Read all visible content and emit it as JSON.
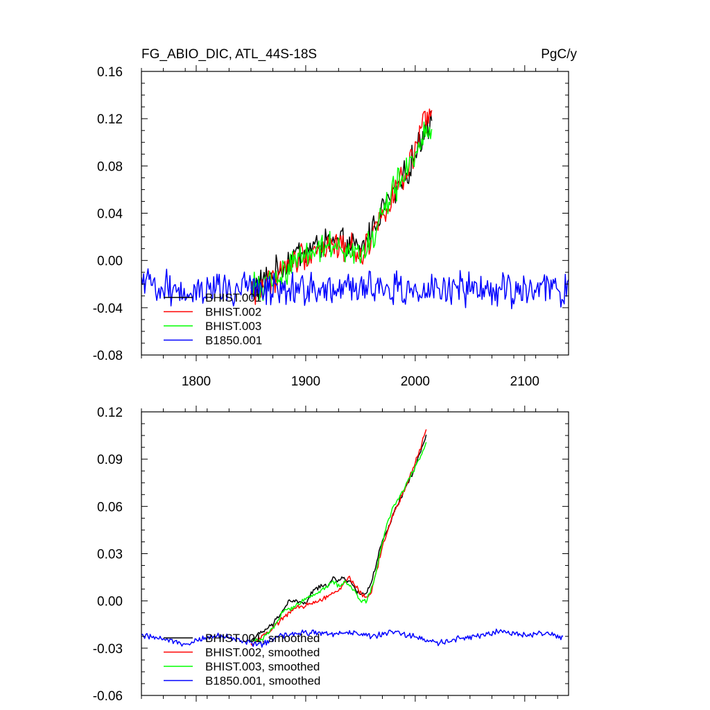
{
  "colors": {
    "BHIST.001": "#000000",
    "BHIST.002": "#ff0000",
    "BHIST.003": "#00ff00",
    "B1850.001": "#0000ff"
  },
  "chart_data": [
    {
      "type": "line",
      "title": "FG_ABIO_DIC, ATL_44S-18S",
      "units": "PgC/y",
      "xlim": [
        1750,
        2140
      ],
      "ylim": [
        -0.08,
        0.16
      ],
      "x_ticks": [
        1800,
        1900,
        2000,
        2100
      ],
      "x_tick_labels": [
        "1800",
        "1900",
        "2000",
        "2100"
      ],
      "y_ticks": [
        -0.08,
        -0.04,
        0.0,
        0.04,
        0.08,
        0.12,
        0.16
      ],
      "y_tick_labels": [
        "-0.08",
        "-0.04",
        "0.00",
        "0.04",
        "0.08",
        "0.12",
        "0.16"
      ],
      "legend": [
        "BHIST.001",
        "BHIST.002",
        "BHIST.003",
        "B1850.001"
      ],
      "legend_position": "bottom-left",
      "series": [
        {
          "name": "BHIST.001",
          "color": "#000000",
          "x_range": [
            1850,
            2015
          ],
          "noise": 0.01,
          "x": [
            1850,
            1870,
            1880,
            1890,
            1900,
            1910,
            1920,
            1930,
            1940,
            1950,
            1960,
            1970,
            1980,
            1990,
            2000,
            2010,
            2015
          ],
          "y": [
            -0.025,
            -0.012,
            -0.005,
            0.005,
            0.008,
            0.012,
            0.015,
            0.014,
            0.012,
            0.008,
            0.025,
            0.045,
            0.055,
            0.07,
            0.09,
            0.115,
            0.12
          ]
        },
        {
          "name": "BHIST.002",
          "color": "#ff0000",
          "x_range": [
            1850,
            2015
          ],
          "noise": 0.01,
          "x": [
            1850,
            1870,
            1880,
            1890,
            1900,
            1910,
            1920,
            1930,
            1940,
            1950,
            1960,
            1970,
            1980,
            1990,
            2000,
            2010,
            2015
          ],
          "y": [
            -0.028,
            -0.015,
            -0.008,
            0.0,
            0.005,
            0.01,
            0.012,
            0.012,
            0.012,
            0.005,
            0.02,
            0.04,
            0.055,
            0.07,
            0.09,
            0.12,
            0.125
          ]
        },
        {
          "name": "BHIST.003",
          "color": "#00ff00",
          "x_range": [
            1850,
            2015
          ],
          "noise": 0.01,
          "x": [
            1850,
            1870,
            1880,
            1890,
            1900,
            1910,
            1920,
            1930,
            1940,
            1950,
            1960,
            1970,
            1980,
            1990,
            2000,
            2010,
            2015
          ],
          "y": [
            -0.025,
            -0.018,
            -0.01,
            0.0,
            0.008,
            0.01,
            0.013,
            0.014,
            0.01,
            0.003,
            0.015,
            0.04,
            0.06,
            0.072,
            0.09,
            0.11,
            0.115
          ]
        },
        {
          "name": "B1850.001",
          "color": "#0000ff",
          "x_range": [
            1750,
            2140
          ],
          "noise": 0.012,
          "x": [
            1750,
            1800,
            1850,
            1900,
            1950,
            2000,
            2050,
            2100,
            2140
          ],
          "y": [
            -0.022,
            -0.024,
            -0.025,
            -0.023,
            -0.024,
            -0.025,
            -0.026,
            -0.024,
            -0.024
          ]
        }
      ]
    },
    {
      "type": "line",
      "xlim": [
        1750,
        2140
      ],
      "ylim": [
        -0.06,
        0.12
      ],
      "x_ticks": [
        1800,
        1900,
        2000,
        2100
      ],
      "y_ticks": [
        -0.06,
        -0.03,
        0.0,
        0.03,
        0.06,
        0.09,
        0.12
      ],
      "y_tick_labels": [
        "-0.06",
        "-0.03",
        "0.00",
        "0.03",
        "0.06",
        "0.09",
        "0.12"
      ],
      "legend": [
        "BHIST.001, smoothed",
        "BHIST.002, smoothed",
        "BHIST.003, smoothed",
        "B1850.001, smoothed"
      ],
      "legend_position": "bottom-left",
      "series": [
        {
          "name": "BHIST.001, smoothed",
          "color": "#000000",
          "x_range": [
            1850,
            2010
          ],
          "noise": 0.0012,
          "x": [
            1850,
            1860,
            1870,
            1880,
            1885,
            1890,
            1900,
            1905,
            1910,
            1920,
            1925,
            1930,
            1935,
            1940,
            1945,
            1950,
            1955,
            1960,
            1965,
            1970,
            1975,
            1980,
            1990,
            2000,
            2005,
            2010
          ],
          "y": [
            -0.025,
            -0.02,
            -0.015,
            -0.005,
            0.0,
            0.0,
            -0.002,
            0.005,
            0.008,
            0.01,
            0.015,
            0.012,
            0.015,
            0.012,
            0.008,
            0.004,
            0.005,
            0.012,
            0.025,
            0.038,
            0.045,
            0.055,
            0.07,
            0.085,
            0.095,
            0.105
          ]
        },
        {
          "name": "BHIST.002, smoothed",
          "color": "#ff0000",
          "x_range": [
            1850,
            2010
          ],
          "noise": 0.0012,
          "x": [
            1850,
            1860,
            1870,
            1880,
            1890,
            1900,
            1910,
            1920,
            1925,
            1930,
            1935,
            1940,
            1945,
            1950,
            1955,
            1960,
            1965,
            1970,
            1975,
            1980,
            1990,
            2000,
            2005,
            2010
          ],
          "y": [
            -0.028,
            -0.022,
            -0.018,
            -0.01,
            -0.005,
            -0.003,
            0.0,
            0.003,
            0.005,
            0.006,
            0.012,
            0.015,
            0.01,
            0.005,
            0.002,
            0.005,
            0.02,
            0.035,
            0.045,
            0.055,
            0.07,
            0.088,
            0.097,
            0.11
          ]
        },
        {
          "name": "BHIST.003, smoothed",
          "color": "#00ff00",
          "x_range": [
            1850,
            2010
          ],
          "noise": 0.0012,
          "x": [
            1850,
            1860,
            1870,
            1880,
            1890,
            1900,
            1910,
            1920,
            1925,
            1930,
            1935,
            1940,
            1945,
            1950,
            1955,
            1960,
            1965,
            1970,
            1975,
            1980,
            1990,
            2000,
            2005,
            2010
          ],
          "y": [
            -0.026,
            -0.024,
            -0.017,
            -0.006,
            -0.004,
            0.002,
            0.005,
            0.01,
            0.012,
            0.01,
            0.012,
            0.01,
            0.005,
            0.0,
            0.0,
            0.008,
            0.02,
            0.038,
            0.05,
            0.06,
            0.072,
            0.085,
            0.092,
            0.1
          ]
        },
        {
          "name": "B1850.001, smoothed",
          "color": "#0000ff",
          "x_range": [
            1750,
            2135
          ],
          "noise": 0.0015,
          "x": [
            1750,
            1770,
            1790,
            1800,
            1820,
            1840,
            1850,
            1860,
            1870,
            1880,
            1900,
            1920,
            1940,
            1960,
            1980,
            2000,
            2020,
            2040,
            2060,
            2080,
            2100,
            2120,
            2135
          ],
          "y": [
            -0.022,
            -0.024,
            -0.027,
            -0.025,
            -0.022,
            -0.025,
            -0.027,
            -0.028,
            -0.024,
            -0.022,
            -0.02,
            -0.021,
            -0.02,
            -0.022,
            -0.02,
            -0.023,
            -0.027,
            -0.024,
            -0.022,
            -0.019,
            -0.022,
            -0.02,
            -0.024
          ]
        }
      ]
    }
  ]
}
